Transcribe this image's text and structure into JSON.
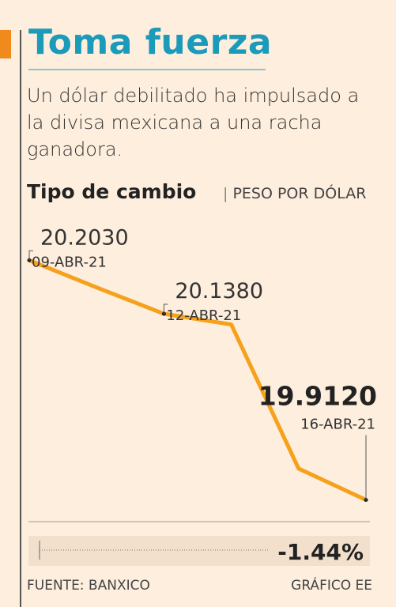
{
  "chart_data": {
    "type": "line",
    "title": "Toma fuerza",
    "subtitle": "Un dólar debilitado ha impulsado a la divisa mexicana a una racha ganadora.",
    "y_label": "Tipo de cambio",
    "unit": "PESO POR DÓLAR",
    "categories": [
      "09-ABR-21",
      null,
      "12-ABR-21",
      null,
      null,
      "16-ABR-21"
    ],
    "values": [
      20.203,
      20.17,
      20.138,
      20.125,
      19.95,
      19.912
    ],
    "value_labels": [
      "20.2030",
      null,
      "20.1380",
      null,
      null,
      "19.9120"
    ],
    "color": "#f5a11c",
    "ylim": [
      19.9,
      20.21
    ],
    "change": "-1.44%",
    "source": "FUENTE: BANXICO",
    "credit": "GRÁFICO EE"
  }
}
